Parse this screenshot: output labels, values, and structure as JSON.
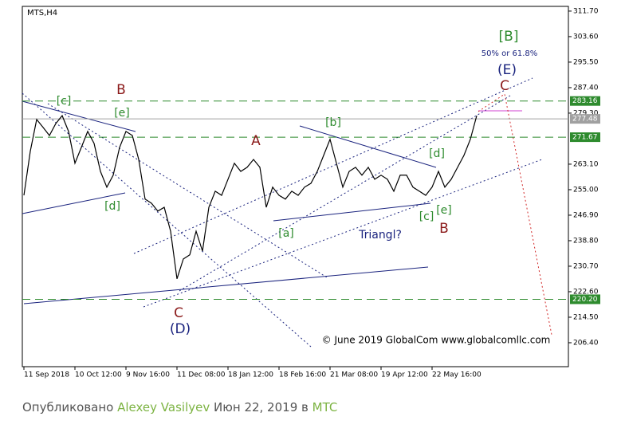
{
  "chart_data": {
    "type": "line",
    "title": "MTS,H4",
    "color": "#000000",
    "x": [
      "11 Sep 2018",
      null,
      null,
      null,
      null,
      null,
      null,
      null,
      "10 Oct 12:00",
      null,
      null,
      null,
      null,
      null,
      null,
      null,
      "9 Nov 16:00",
      null,
      null,
      null,
      null,
      null,
      null,
      null,
      "11 Dec 08:00",
      null,
      null,
      null,
      null,
      null,
      null,
      null,
      "18 Jan 12:00",
      null,
      null,
      null,
      null,
      null,
      null,
      null,
      "18 Feb 16:00",
      null,
      null,
      null,
      null,
      null,
      null,
      null,
      "21 Mar 08:00",
      null,
      null,
      null,
      null,
      null,
      null,
      null,
      "19 Apr 12:00",
      null,
      null,
      null,
      null,
      null,
      null,
      null,
      "22 May 16:00",
      null,
      null,
      null,
      null,
      null,
      null,
      null
    ],
    "values": [
      253.2,
      267.2,
      277.3,
      274.8,
      272.2,
      276.0,
      278.5,
      273.5,
      263.4,
      268.4,
      273.5,
      269.7,
      260.8,
      255.8,
      259.6,
      268.4,
      273.5,
      272.2,
      264.6,
      252.0,
      250.7,
      248.2,
      249.4,
      241.8,
      226.7,
      233.0,
      234.3,
      241.8,
      235.5,
      249.4,
      254.5,
      253.2,
      258.3,
      263.4,
      260.8,
      262.1,
      264.6,
      262.1,
      249.4,
      255.8,
      253.2,
      252.0,
      254.5,
      253.2,
      255.8,
      257.0,
      260.8,
      265.9,
      271.0,
      263.4,
      255.8,
      260.8,
      262.1,
      259.6,
      262.1,
      258.3,
      259.6,
      258.3,
      254.5,
      259.6,
      259.6,
      255.8,
      254.5,
      253.2,
      255.8,
      260.8,
      255.8,
      258.3,
      262.1,
      265.9,
      271.0,
      278.5
    ],
    "ylim": [
      198.8,
      313.2
    ],
    "yticks": [
      {
        "value": 311.7,
        "label": "311.70"
      },
      {
        "value": 303.6,
        "label": "303.60"
      },
      {
        "value": 295.5,
        "label": "295.50"
      },
      {
        "value": 287.4,
        "label": "287.40"
      },
      {
        "value": 279.3,
        "label": "279.30"
      },
      {
        "value": 263.1,
        "label": "263.10"
      },
      {
        "value": 255.0,
        "label": "255.00"
      },
      {
        "value": 246.9,
        "label": "246.90"
      },
      {
        "value": 238.8,
        "label": "238.80"
      },
      {
        "value": 230.7,
        "label": "230.70"
      },
      {
        "value": 222.6,
        "label": "222.60"
      },
      {
        "value": 214.5,
        "label": "214.50"
      },
      {
        "value": 206.4,
        "label": "206.40"
      }
    ],
    "hlines": [
      {
        "value": 283.16,
        "label": "283.16",
        "color": "#2e8b2e"
      },
      {
        "value": 277.48,
        "label": "277.48",
        "color": "#a0a0a0"
      },
      {
        "value": 271.67,
        "label": "271.67",
        "color": "#2e8b2e"
      },
      {
        "value": 220.2,
        "label": "220.20",
        "color": "#2e8b2e"
      }
    ],
    "annotations": [
      {
        "text": "[c]",
        "color": "#2e8b2e"
      },
      {
        "text": "B",
        "color": "#8b1a1a"
      },
      {
        "text": "[e]",
        "color": "#2e8b2e"
      },
      {
        "text": "[d]",
        "color": "#2e8b2e"
      },
      {
        "text": "A",
        "color": "#8b1a1a"
      },
      {
        "text": "[b]",
        "color": "#2e8b2e"
      },
      {
        "text": "[d]",
        "color": "#2e8b2e"
      },
      {
        "text": "[a]",
        "color": "#2e8b2e"
      },
      {
        "text": "[c]",
        "color": "#2e8b2e"
      },
      {
        "text": "[e]",
        "color": "#2e8b2e"
      },
      {
        "text": "B",
        "color": "#8b1a1a"
      },
      {
        "text": "Triangl?",
        "color": "#1a237e"
      },
      {
        "text": "C",
        "color": "#8b1a1a"
      },
      {
        "text": "(D)",
        "color": "#1a237e"
      },
      {
        "text": "C",
        "color": "#8b1a1a"
      },
      {
        "text": "(E)",
        "color": "#1a237e"
      },
      {
        "text": "[B]",
        "color": "#2e8b2e"
      },
      {
        "text": "50% or 61.8%",
        "color": "#1a237e"
      },
      {
        "text": "© June 2019 GlobalCom www.globalcomllc.com",
        "color": "#000000"
      }
    ]
  },
  "footer": {
    "prefix": "Опубликовано",
    "author": "Alexey Vasilyev",
    "date": "Июн 22, 2019 в",
    "symbol": "MTC"
  }
}
